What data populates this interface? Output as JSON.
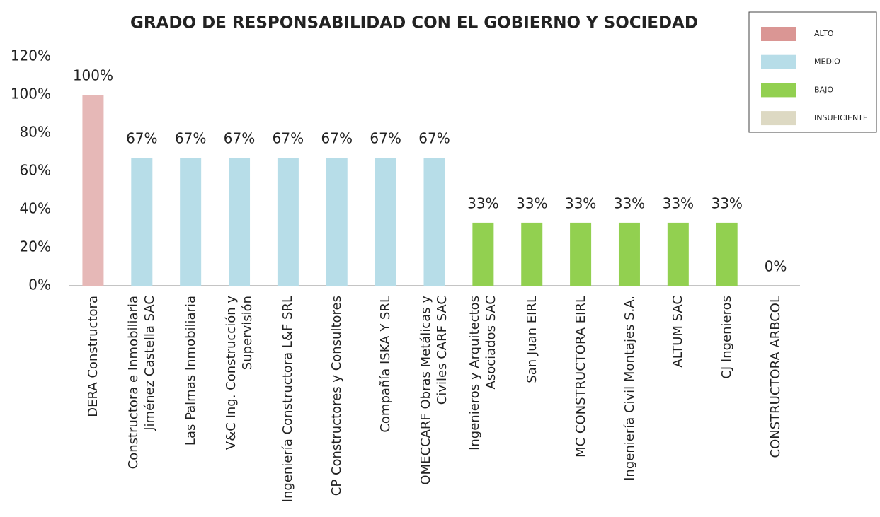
{
  "chart_data": {
    "type": "bar",
    "title": "GRADO DE RESPONSABILIDAD CON EL GOBIERNO Y SOCIEDAD",
    "categories": [
      "DERA Constructora",
      "Constructora e Inmobiliaria Jiménez Castella SAC",
      "Las Palmas Inmobiliaria",
      "V&C Ing. Construcción y Supervisión",
      "Ingeniería Constructora L&F SRL",
      "CP Constructores y Consultores",
      "Compañía ISKA Y SRL",
      "OMECCARF Obras Metálicas y Civiles CARF SAC",
      "Ingenieros y Arquitectos Asociados SAC",
      "San Juan EIRL",
      "MC CONSTRUCTORA EIRL",
      "Ingeniería Civil Montajes S.A.",
      "ALTUM SAC",
      "CJ Ingenieros",
      "CONSTRUCTORA ARBCOL"
    ],
    "values": [
      100,
      67,
      67,
      67,
      67,
      67,
      67,
      67,
      33,
      33,
      33,
      33,
      33,
      33,
      0
    ],
    "value_labels": [
      "100%",
      "67%",
      "67%",
      "67%",
      "67%",
      "67%",
      "67%",
      "67%",
      "33%",
      "33%",
      "33%",
      "33%",
      "33%",
      "33%",
      "0%"
    ],
    "colors": [
      "#e6b8b7",
      "#b7dde8",
      "#b7dde8",
      "#b7dde8",
      "#b7dde8",
      "#b7dde8",
      "#b7dde8",
      "#b7dde8",
      "#92d050",
      "#92d050",
      "#92d050",
      "#92d050",
      "#92d050",
      "#92d050",
      "#ddd9c3"
    ],
    "ylim": [
      0,
      120
    ],
    "yticks": [
      {
        "value": 0,
        "label": "0%"
      },
      {
        "value": 20,
        "label": "20%"
      },
      {
        "value": 40,
        "label": "40%"
      },
      {
        "value": 60,
        "label": "60%"
      },
      {
        "value": 80,
        "label": "80%"
      },
      {
        "value": 100,
        "label": "100%"
      },
      {
        "value": 120,
        "label": "120%"
      }
    ],
    "grid": false,
    "legend": [
      {
        "name": "ALTO",
        "color": "#da9694"
      },
      {
        "name": "MEDIO",
        "color": "#b7dde8"
      },
      {
        "name": "BAJO",
        "color": "#92d050"
      },
      {
        "name": "INSUFICIENTE",
        "color": "#ddd9c3"
      }
    ]
  }
}
